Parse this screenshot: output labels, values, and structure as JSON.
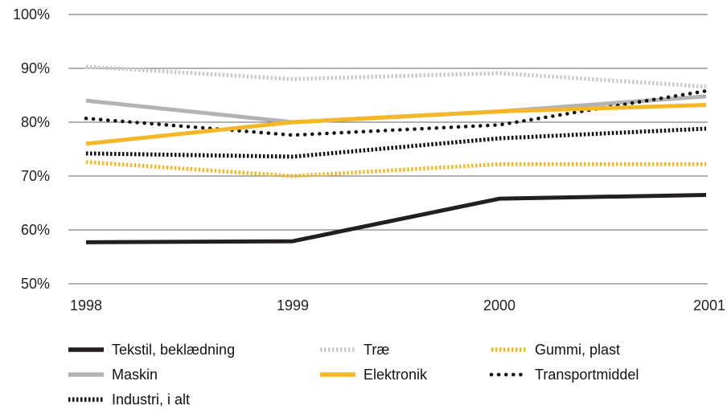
{
  "chart_data": {
    "type": "line",
    "title": "",
    "xlabel": "",
    "ylabel": "",
    "x": [
      "1998",
      "1999",
      "2000",
      "2001"
    ],
    "ylim": [
      50,
      100
    ],
    "yticks": [
      50,
      60,
      70,
      80,
      90,
      100
    ],
    "ytick_labels": [
      "50%",
      "60%",
      "70%",
      "80%",
      "90%",
      "100%"
    ],
    "grid": "horizontal",
    "legend_position": "bottom",
    "series": [
      {
        "name": "Tekstil, beklædning",
        "values": [
          57.7,
          57.9,
          65.8,
          66.5
        ],
        "color": "#231f20",
        "style": "solid-thick"
      },
      {
        "name": "Træ",
        "values": [
          90.3,
          88.0,
          89.1,
          86.6
        ],
        "color": "#c9c9c9",
        "style": "dash-fine"
      },
      {
        "name": "Gummi, plast",
        "values": [
          72.6,
          70.0,
          72.2,
          72.2
        ],
        "color": "#f4b728",
        "style": "dash-fine"
      },
      {
        "name": "Maskin",
        "values": [
          84.0,
          80.0,
          82.0,
          84.8
        ],
        "color": "#b3b3b3",
        "style": "solid"
      },
      {
        "name": "Elektronik",
        "values": [
          76.0,
          80.0,
          82.0,
          83.2
        ],
        "color": "#f4b728",
        "style": "solid"
      },
      {
        "name": "Transportmiddel",
        "values": [
          80.7,
          77.6,
          79.5,
          85.8
        ],
        "color": "#111111",
        "style": "dotted"
      },
      {
        "name": "Industri, i alt",
        "values": [
          74.2,
          73.6,
          77.0,
          78.8
        ],
        "color": "#111111",
        "style": "dash-fine"
      }
    ]
  }
}
